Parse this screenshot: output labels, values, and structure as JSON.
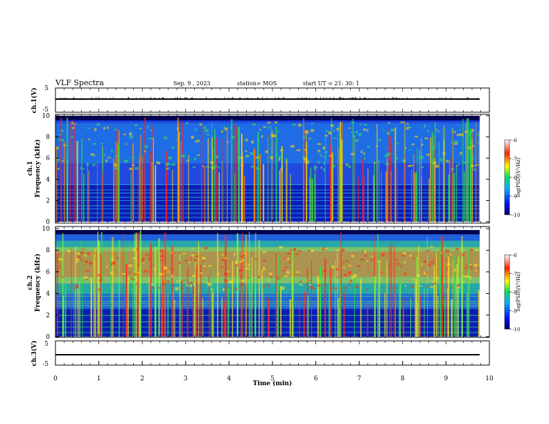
{
  "header": {
    "title": "VLF Spectra",
    "date": "Sep. 9 , 2023",
    "station": "station= MOS",
    "start": "start  UT =   21: 30: 1"
  },
  "chart_data": [
    {
      "type": "line",
      "name": "waveform-ch1",
      "ylabel": "ch.1(V)",
      "ylim": [
        -5,
        5
      ],
      "yticks": [
        "5",
        "-5"
      ]
    },
    {
      "type": "heatmap",
      "name": "spectrogram-ch1",
      "ylabel_top": "ch.1",
      "ylabel": "Frequency (kHz)",
      "ylim": [
        0,
        10
      ],
      "yticks": [
        "0",
        "2",
        "4",
        "6",
        "8",
        "10"
      ],
      "colorbar": {
        "label": "log(PSD)(V²/Hz)",
        "range": [
          -10,
          -6
        ],
        "ticks": [
          "-6",
          "-7",
          "-8",
          "-9",
          "-10"
        ]
      }
    },
    {
      "type": "heatmap",
      "name": "spectrogram-ch2",
      "ylabel_top": "ch.2",
      "ylabel": "Frequency (kHz)",
      "ylim": [
        0,
        10
      ],
      "yticks": [
        "0",
        "2",
        "4",
        "6",
        "8",
        "10"
      ],
      "colorbar": {
        "label": "log(PSD)(V²/Hz)",
        "range": [
          -10,
          -6
        ],
        "ticks": [
          "-6",
          "-7",
          "-8",
          "-9",
          "-10"
        ]
      }
    },
    {
      "type": "line",
      "name": "waveform-ch3",
      "ylabel": "ch.3(V)",
      "ylim": [
        -5,
        5
      ],
      "yticks": [
        "5",
        "-5"
      ],
      "xlabel": "Time (min)",
      "xlim": [
        0,
        10
      ],
      "xticks": [
        "0",
        "1",
        "2",
        "3",
        "4",
        "5",
        "6",
        "7",
        "8",
        "9",
        "10"
      ]
    }
  ]
}
